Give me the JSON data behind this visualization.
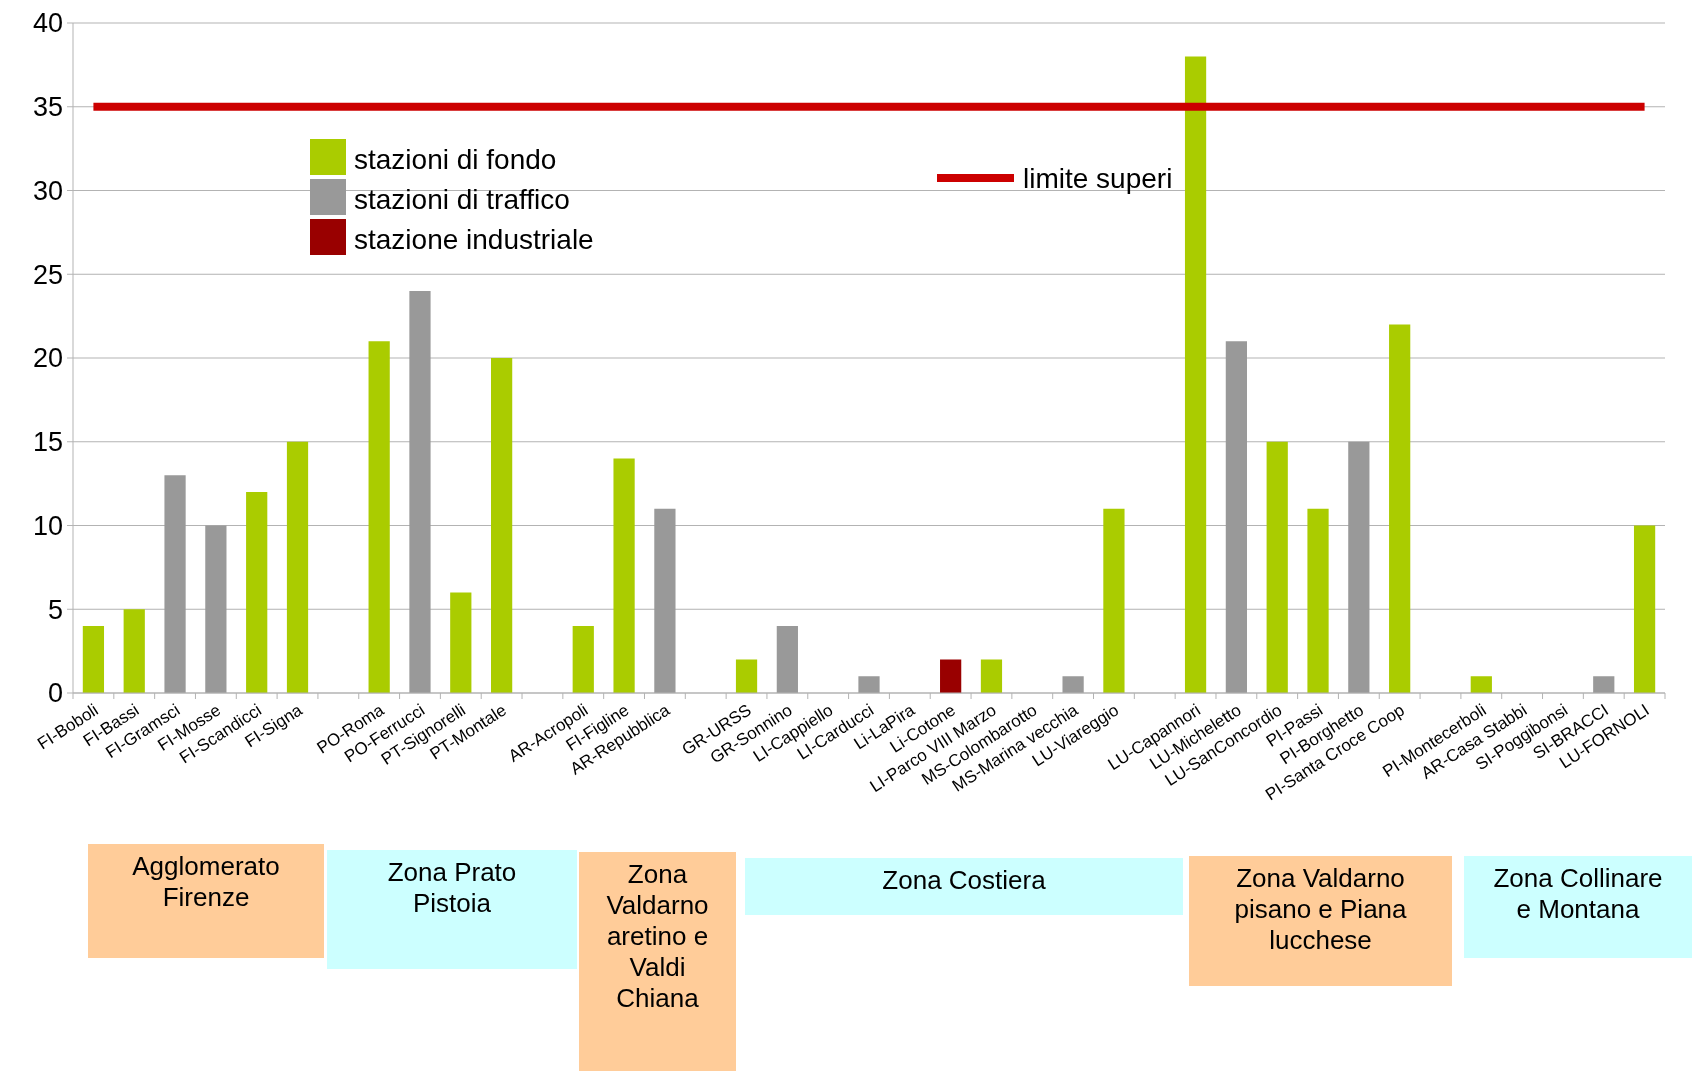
{
  "chart_data": {
    "type": "bar",
    "categories": [
      "FI-Boboli",
      "FI-Bassi",
      "FI-Gramsci",
      "FI-Mosse",
      "FI-Scandicci",
      "FI-Signa",
      null,
      "PO-Roma",
      "PO-Ferrucci",
      "PT-Signorelli",
      "PT-Montale",
      null,
      "AR-Acropoli",
      "FI-Figline",
      "AR-Repubblica",
      null,
      "GR-URSS",
      "GR-Sonnino",
      "LI-Cappiello",
      "LI-Carducci",
      "Li-LaPira",
      "Li-Cotone",
      "LI-Parco VIII Marzo",
      "MS-Colombarotto",
      "MS-Marina vecchia",
      "LU-Viareggio",
      null,
      "LU-Capannori",
      "LU-Micheletto",
      "LU-SanConcordio",
      "PI-Passi",
      "PI-Borghetto",
      "PI-Santa Croce Coop",
      null,
      "PI-Montecerboli",
      "AR-Casa Stabbi",
      "SI-Poggibonsi",
      "SI-BRACCI",
      "LU-FORNOLI"
    ],
    "series": [
      {
        "name": "stazioni di fondo",
        "color": "#aacc00",
        "values": [
          4,
          5,
          null,
          null,
          12,
          15,
          null,
          21,
          null,
          6,
          20,
          null,
          4,
          14,
          null,
          null,
          2,
          null,
          0,
          null,
          0,
          null,
          2,
          0,
          null,
          11,
          null,
          38,
          null,
          15,
          11,
          null,
          22,
          null,
          1,
          0,
          0,
          null,
          10
        ]
      },
      {
        "name": "stazioni di traffico",
        "color": "#999999",
        "values": [
          null,
          null,
          13,
          10,
          null,
          null,
          null,
          null,
          24,
          null,
          null,
          null,
          null,
          null,
          11,
          null,
          null,
          4,
          null,
          1,
          null,
          null,
          null,
          null,
          1,
          null,
          null,
          null,
          21,
          null,
          null,
          15,
          null,
          null,
          null,
          null,
          null,
          1,
          null
        ]
      },
      {
        "name": "stazione industriale",
        "color": "#990000",
        "values": [
          null,
          null,
          null,
          null,
          null,
          null,
          null,
          null,
          null,
          null,
          null,
          null,
          null,
          null,
          null,
          null,
          null,
          null,
          null,
          null,
          null,
          2,
          null,
          null,
          null,
          null,
          null,
          null,
          null,
          null,
          null,
          null,
          null,
          null,
          null,
          null,
          null,
          null,
          null
        ]
      }
    ],
    "ylim": [
      0,
      40
    ],
    "yticks": [
      0,
      5,
      10,
      15,
      20,
      25,
      30,
      35,
      40
    ],
    "grid": "y",
    "legend": "top",
    "ref_lines": [
      {
        "axis": "y",
        "value": 35,
        "label": "limite superi",
        "color": "#cc0000"
      }
    ],
    "annotations": [
      "Agglomerato Firenze",
      "Zona Prato Pistoia",
      "Zona Valdarno aretino e Valdi Chiana",
      "Zona Costiera",
      "Zona Valdarno pisano e Piana lucchese",
      "Zona Collinare e Montana"
    ]
  }
}
